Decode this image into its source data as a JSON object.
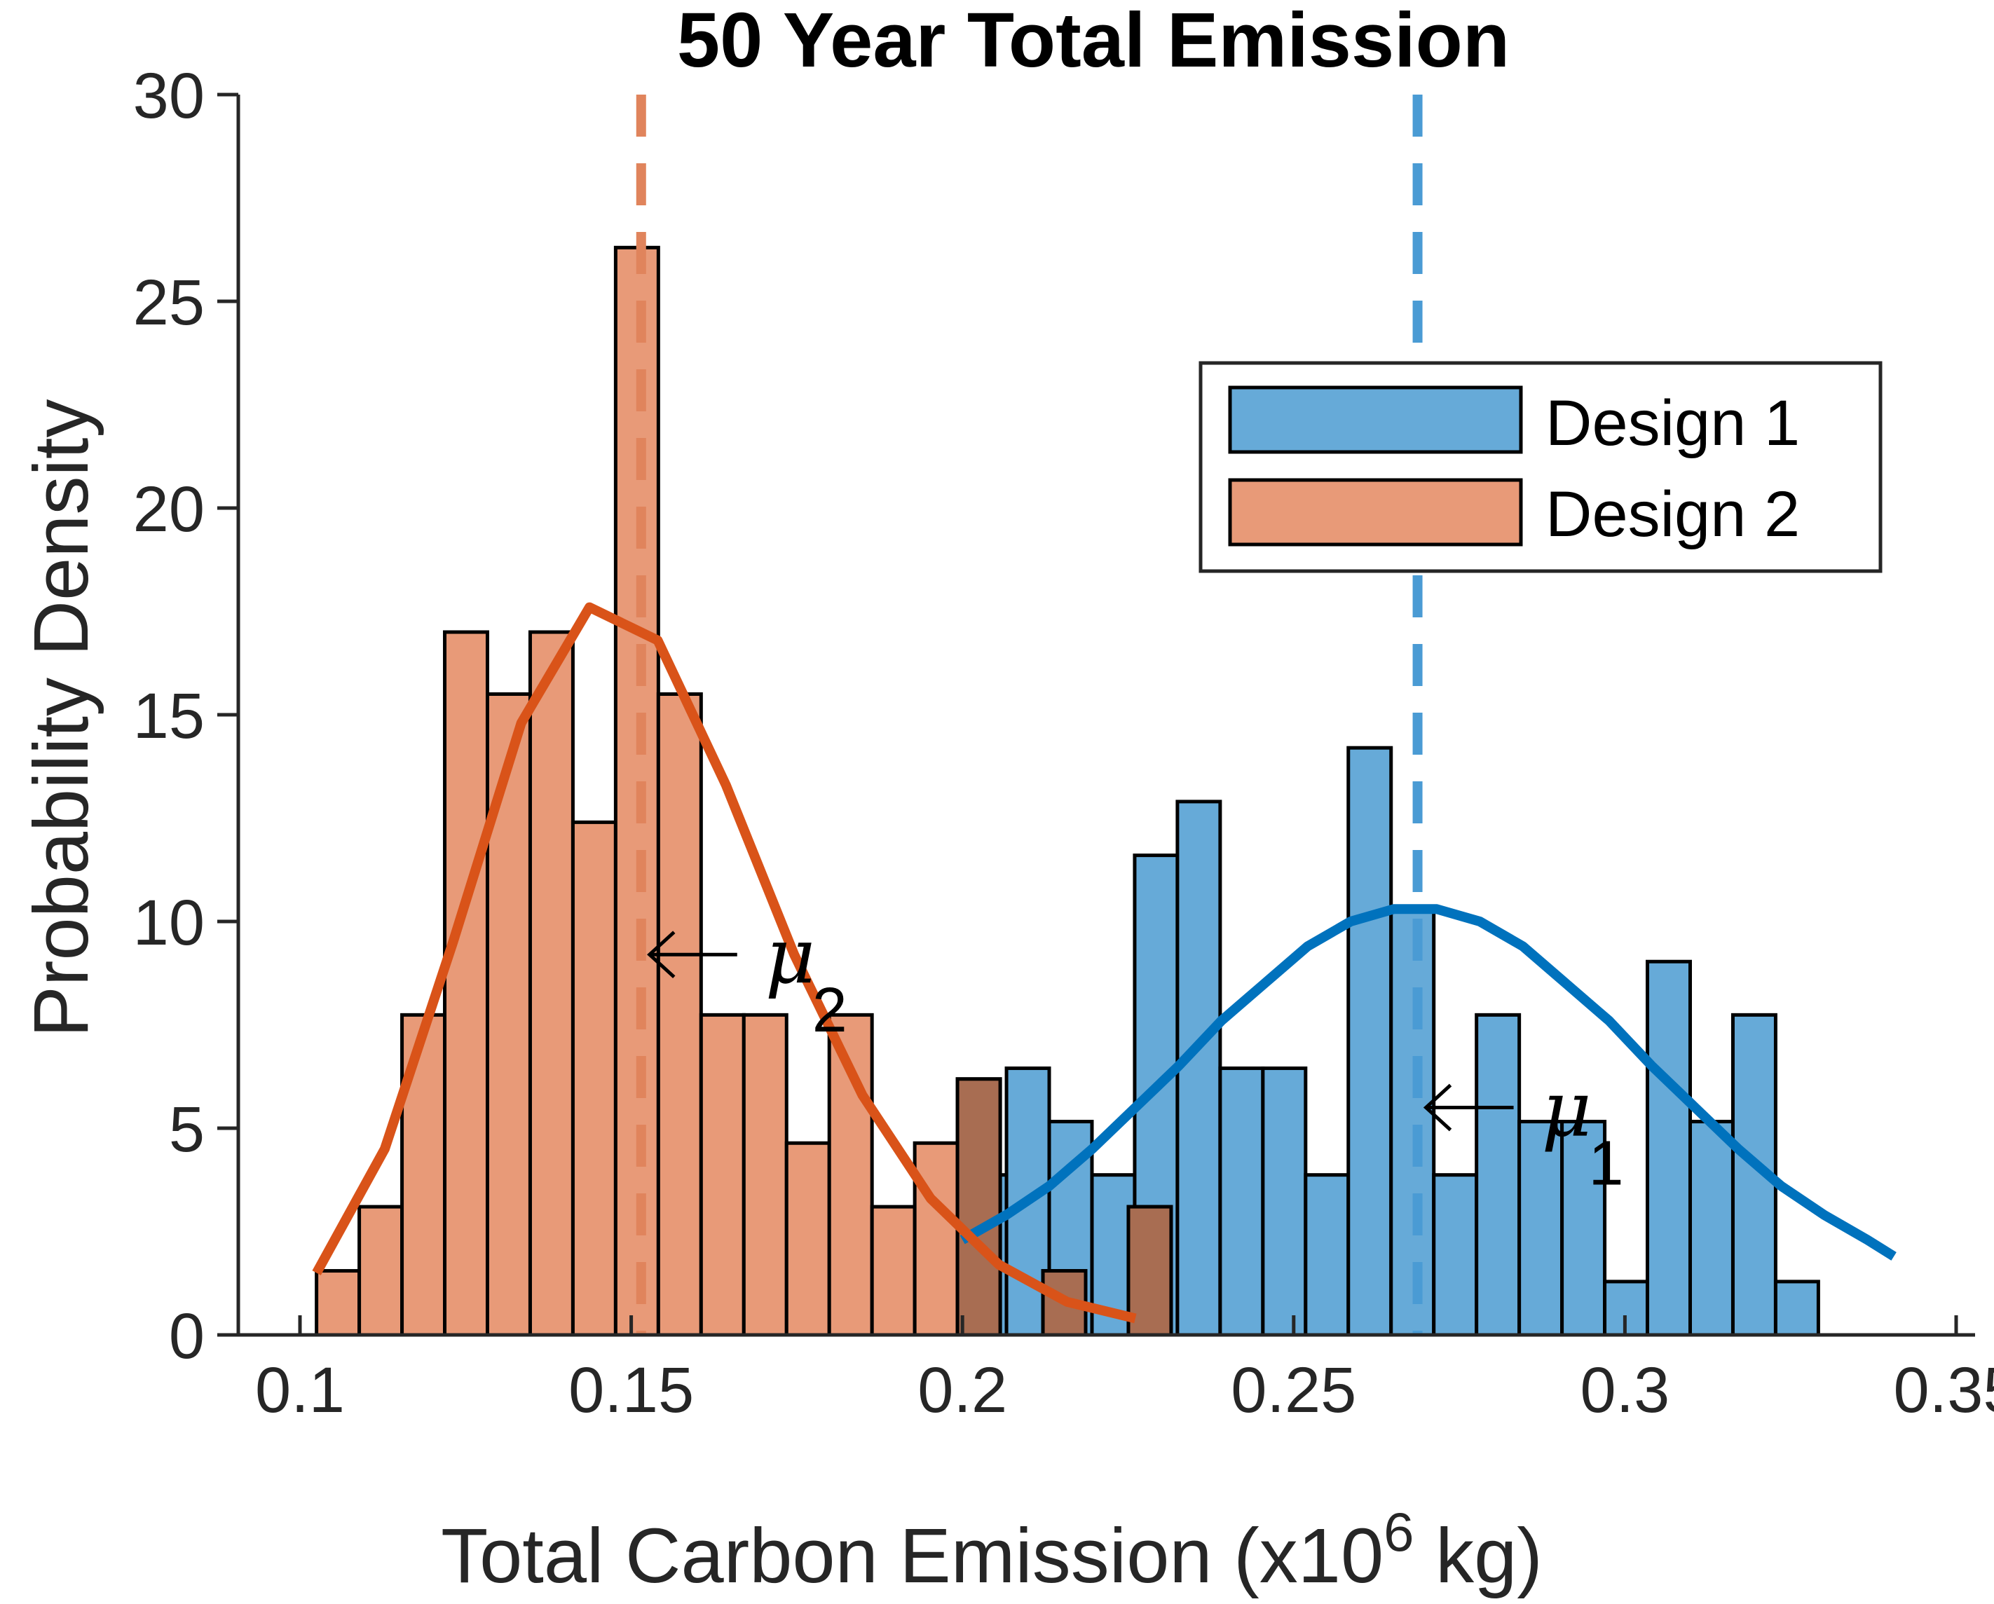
{
  "chart_data": {
    "type": "bar",
    "title": "50 Year Total Emission",
    "xlabel": "Total Carbon Emission (x10",
    "xlabel_sup": "6",
    "xlabel_end": " kg)",
    "ylabel": "Probability Density",
    "xlim": [
      0.095,
      0.355
    ],
    "ylim": [
      0,
      30
    ],
    "xticks": [
      0.1,
      0.15,
      0.2,
      0.25,
      0.3,
      0.35
    ],
    "xtick_labels": [
      "0.1",
      "0.15",
      "0.2",
      "0.25",
      "0.3",
      "0.35"
    ],
    "yticks": [
      0,
      5,
      10,
      15,
      20,
      25,
      30
    ],
    "ytick_labels": [
      "0",
      "5",
      "10",
      "15",
      "20",
      "25",
      "30"
    ],
    "bin_width": 0.00645,
    "legend": {
      "position": "top-right",
      "entries": [
        "Design 1",
        "Design 2"
      ]
    },
    "series": [
      {
        "name": "Design 1",
        "color": "#66aad8",
        "bin_start": 0.2002,
        "values": [
          3.87,
          6.45,
          5.16,
          3.87,
          11.6,
          12.9,
          6.45,
          6.45,
          3.87,
          14.2,
          10.3,
          3.87,
          7.74,
          5.16,
          5.16,
          1.29,
          9.03,
          5.16,
          7.74,
          1.29
        ],
        "mean": 0.2687,
        "mean_label": "μ",
        "mean_sub": "1",
        "fit_color": "#0072bd",
        "fit_x": [
          0.2,
          0.2066,
          0.2131,
          0.2196,
          0.2261,
          0.2326,
          0.2391,
          0.2456,
          0.2521,
          0.2586,
          0.2651,
          0.2716,
          0.2781,
          0.2846,
          0.2911,
          0.2976,
          0.3041,
          0.3106,
          0.3171,
          0.3236,
          0.3301,
          0.3366,
          0.3406
        ],
        "fit_y": [
          2.3,
          2.9,
          3.6,
          4.5,
          5.5,
          6.5,
          7.6,
          8.5,
          9.4,
          10.0,
          10.3,
          10.3,
          10.0,
          9.4,
          8.5,
          7.6,
          6.5,
          5.5,
          4.5,
          3.6,
          2.9,
          2.3,
          1.9
        ]
      },
      {
        "name": "Design 2",
        "color": "#e89a78",
        "bin_start": 0.1025,
        "values": [
          1.55,
          3.1,
          7.74,
          17.0,
          15.5,
          17.0,
          12.4,
          26.3,
          15.5,
          7.74,
          7.74,
          4.64,
          7.74,
          3.1,
          4.64,
          6.19,
          0,
          1.55,
          0,
          3.1
        ],
        "mean": 0.1515,
        "mean_label": "μ",
        "mean_sub": "2",
        "fit_color": "#d95319",
        "fit_x": [
          0.1025,
          0.1128,
          0.1231,
          0.1334,
          0.1437,
          0.154,
          0.1643,
          0.1746,
          0.1849,
          0.1952,
          0.2055,
          0.2158,
          0.2261
        ],
        "fit_y": [
          1.5,
          4.5,
          9.5,
          14.8,
          17.6,
          16.8,
          13.3,
          9.2,
          5.8,
          3.3,
          1.7,
          0.8,
          0.4
        ]
      }
    ]
  }
}
